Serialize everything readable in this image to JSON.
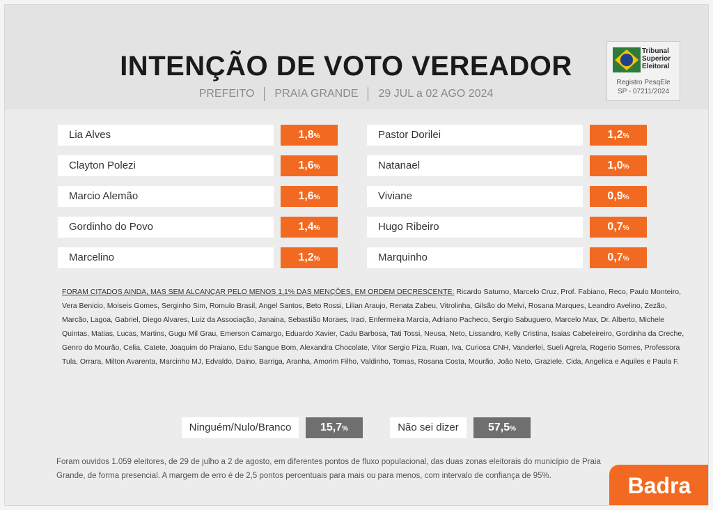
{
  "header": {
    "title": "INTENÇÃO DE VOTO VEREADOR",
    "subtitle_parts": [
      "PREFEITO",
      "PRAIA GRANDE",
      "29 JUL a 02 AGO 2024"
    ]
  },
  "seal": {
    "org_lines": [
      "Tribunal",
      "Superior",
      "Eleitoral"
    ],
    "reg_lines": [
      "Registro PesqEle",
      "SP - 07211/2024"
    ]
  },
  "chart_data": {
    "type": "table",
    "unit": "%",
    "columns": [
      [
        {
          "name": "Lia Alves",
          "value": "1,8"
        },
        {
          "name": "Clayton Polezi",
          "value": "1,6"
        },
        {
          "name": "Marcio Alemão",
          "value": "1,6"
        },
        {
          "name": "Gordinho do Povo",
          "value": "1,4"
        },
        {
          "name": "Marcelino",
          "value": "1,2"
        }
      ],
      [
        {
          "name": "Pastor Dorilei",
          "value": "1,2"
        },
        {
          "name": "Natanael",
          "value": "1,0"
        },
        {
          "name": "Viviane",
          "value": "0,9"
        },
        {
          "name": "Hugo Ribeiro",
          "value": "0,7"
        },
        {
          "name": "Marquinho",
          "value": "0,7"
        }
      ]
    ],
    "summary": [
      {
        "name": "Ninguém/Nulo/Branco",
        "value": "15,7"
      },
      {
        "name": "Não sei dizer",
        "value": "57,5"
      }
    ]
  },
  "notes": {
    "lead": "FORAM CITADOS AINDA, MAS SEM ALCANÇAR PELO MENOS 1,1% DAS MENÇÕES, EM ORDEM DECRESCENTE:",
    "text": "Ricardo Saturno, Marcelo Cruz, Prof. Fabiano, Reco, Paulo Monteiro, Vera Benicio, Moiseis Gomes, Serginho Sim, Romulo Brasil, Angel Santos, Beto Rossi, Lilian Araujo, Renata Zabeu, Vitrolinha, Gilsão do Melvi, Rosana Marques, Leandro Avelino, Zezão, Marcão, Lagoa, Gabriel, Diego Alvares, Luiz da Associação, Janaina, Sebastião Moraes, Iraci, Enfermeira Marcia, Adriano Pacheco, Sergio Sabuguero, Marcelo Max, Dr. Alberto, Michele Quintas, Matias, Lucas, Martins, Gugu Mil Grau, Emerson Camargo, Eduardo Xavier, Cadu Barbosa, Tati Tossi, Neusa, Neto, Lissandro, Kelly Cristina, Isaias Cabeleireiro, Gordinha da Creche, Genro do Mourão, Celia, Catete, Joaquim do Praiano, Edu Sangue Bom, Alexandra Chocolate, Vitor Sergio Piza, Ruan, Iva, Curiosa CNH, Vanderlei, Sueli Agrela, Rogerio Somes, Professora Tula, Orrara, Milton Avarenta, Marcinho MJ, Edvaldo, Daino, Barriga, Aranha, Amorim Filho, Valdinho, Tomas, Rosana Costa, Mourão, João Neto, Graziele, Cida, Angelica e Aquiles e Paula F."
  },
  "footer": {
    "text": "Foram ouvidos 1.059 eleitores, de 29 de julho a 2 de agosto, em diferentes pontos de fluxo populacional, das duas zonas eleitorais do município de Praia Grande, de forma presencial. A margem de erro é de 2,5 pontos percentuais para mais ou para menos, com intervalo de confiança de 95%."
  },
  "brand": {
    "name": "Badra"
  },
  "colors": {
    "accent": "#f26a21",
    "summary": "#6f6f6f",
    "header_bg": "#e3e3e3"
  }
}
